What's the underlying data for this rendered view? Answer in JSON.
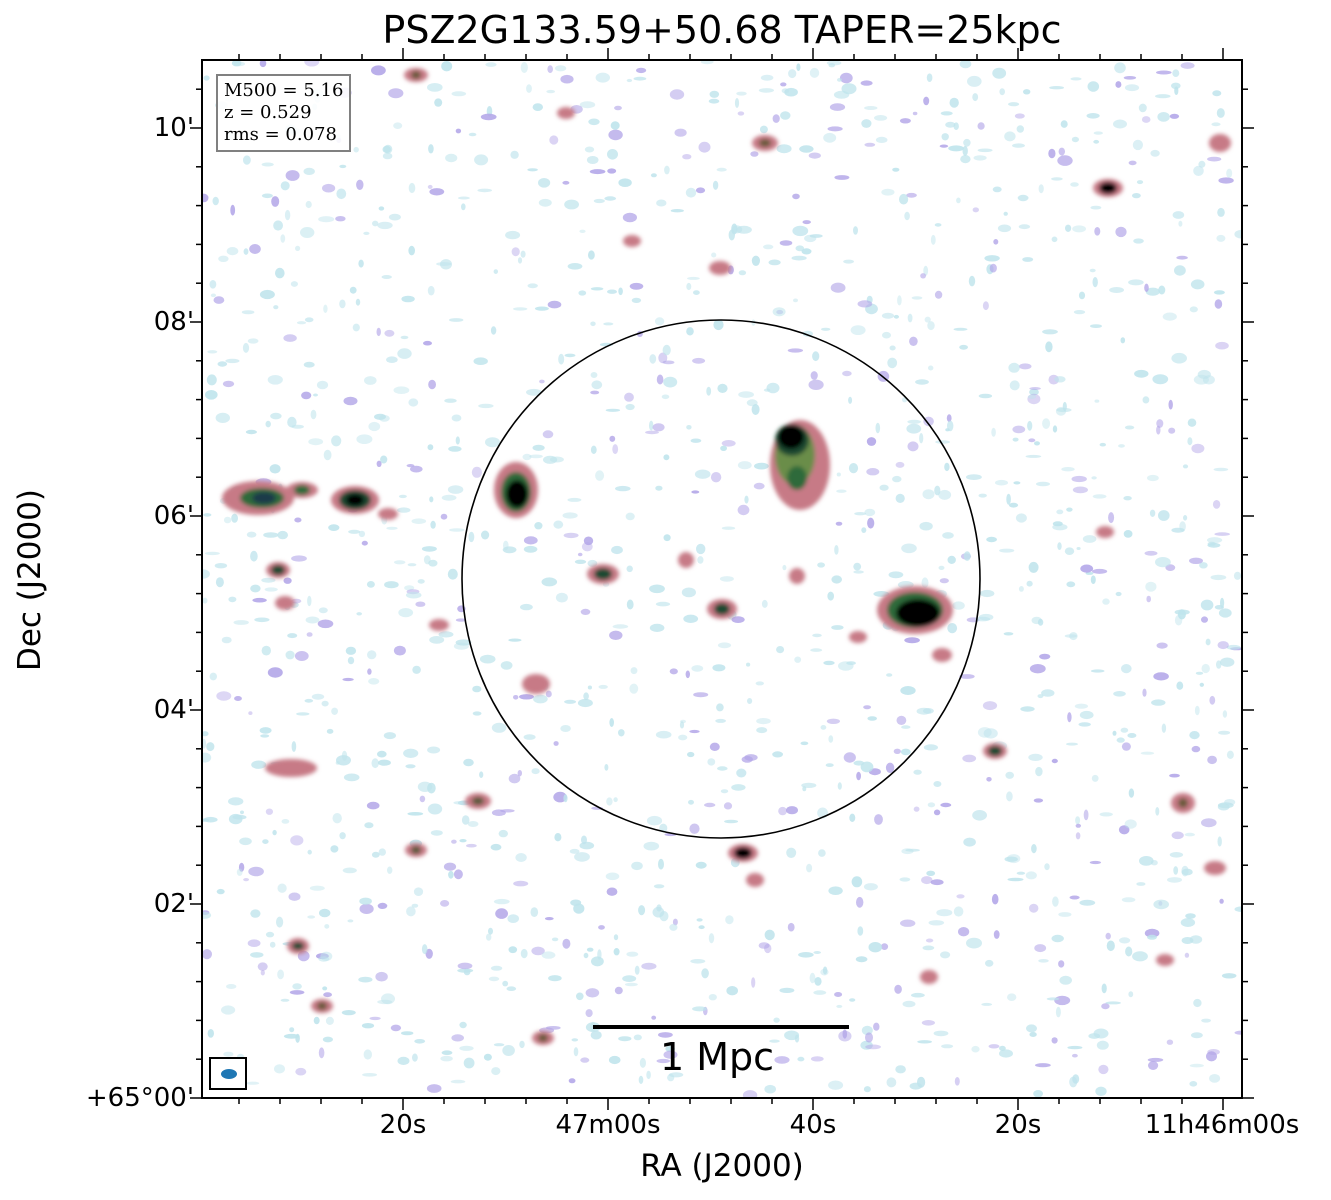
{
  "title": "PSZ2G133.59+50.68 TAPER=25kpc",
  "info": {
    "m500": "M500 = 5.16",
    "z": "z = 0.529",
    "rms": "rms = 0.078"
  },
  "axes": {
    "xlabel": "RA (J2000)",
    "ylabel": "Dec (J2000)",
    "xticks": [
      "20s",
      "47m00s",
      "40s",
      "20s",
      "11h46m00s"
    ],
    "yticks": [
      "10'",
      "08'",
      "06'",
      "04'",
      "02'",
      "+65°00'"
    ]
  },
  "scalebar": {
    "label": "1 Mpc"
  },
  "colors": {
    "bright_source": "#000000",
    "mid_source": "#2e6b3a",
    "faint_source": "#c0708a",
    "noise_purple": "#b3a6e8",
    "noise_cyan": "#bfe4ec",
    "beam": "#1f77b4"
  }
}
